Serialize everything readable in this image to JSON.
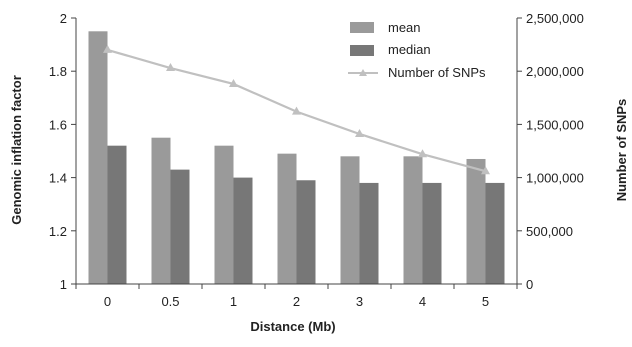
{
  "chart_data": {
    "type": "bar",
    "categories": [
      "0",
      "0.5",
      "1",
      "2",
      "3",
      "4",
      "5"
    ],
    "xlabel": "Distance (Mb)",
    "ylabel": "Genomic inflation factor",
    "ylim": [
      1,
      2
    ],
    "yticks": [
      "1",
      "1.2",
      "1.4",
      "1.6",
      "1.8",
      "2"
    ],
    "y2label": "Number of SNPs",
    "y2lim": [
      0,
      2500000
    ],
    "y2ticks": [
      "0",
      "500,000",
      "1,000,000",
      "1,500,000",
      "2,000,000",
      "2,500,000"
    ],
    "legend_position": "top-right",
    "grid": false,
    "series": [
      {
        "name": "mean",
        "kind": "bar",
        "axis": "left",
        "color": "#9a9a9a",
        "values": [
          1.95,
          1.55,
          1.52,
          1.49,
          1.48,
          1.48,
          1.47
        ]
      },
      {
        "name": "median",
        "kind": "bar",
        "axis": "left",
        "color": "#777777",
        "values": [
          1.52,
          1.43,
          1.4,
          1.39,
          1.38,
          1.38,
          1.38
        ]
      },
      {
        "name": "Number of SNPs",
        "kind": "line",
        "axis": "right",
        "color": "#c0c0c0",
        "marker": "triangle",
        "values": [
          2200000,
          2030000,
          1880000,
          1620000,
          1410000,
          1220000,
          1060000
        ]
      }
    ]
  }
}
